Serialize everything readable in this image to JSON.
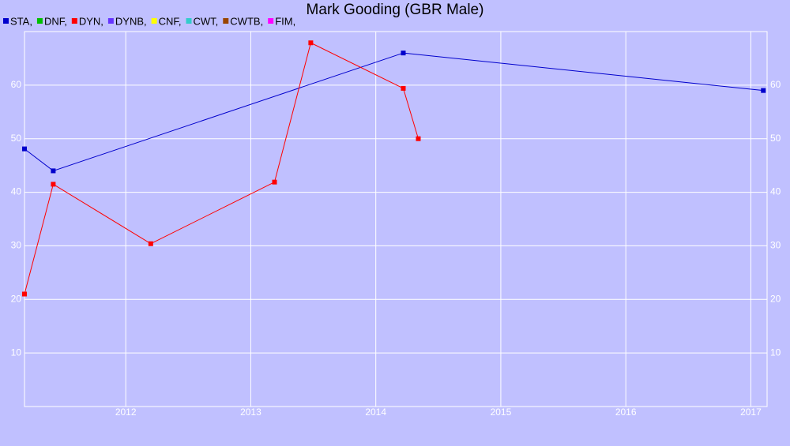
{
  "chart_data": {
    "type": "line",
    "title": "Mark Gooding (GBR Male)",
    "background": "#c0c0ff",
    "grid": true,
    "grid_color": "#ffffff",
    "xlim": [
      2011.19,
      2017.13
    ],
    "xticks": [
      2012,
      2013,
      2014,
      2015,
      2016,
      2017
    ],
    "ylim": [
      0,
      70
    ],
    "yticks": [
      10,
      20,
      30,
      40,
      50,
      60
    ],
    "series": [
      {
        "name": "STA,",
        "color": "#0000cc",
        "x": [
          2011.19,
          2011.42,
          2014.22,
          2017.1
        ],
        "values": [
          48.1,
          44,
          66,
          59
        ]
      },
      {
        "name": "DNF,",
        "color": "#00c000",
        "x": [],
        "values": []
      },
      {
        "name": "DYN,",
        "color": "#ff0000",
        "x": [
          2011.19,
          2011.42,
          2012.2,
          2013.19,
          2013.48,
          2014.22,
          2014.34
        ],
        "values": [
          21,
          41.5,
          30.4,
          41.9,
          67.9,
          59.4,
          50
        ]
      },
      {
        "name": "DYNB,",
        "color": "#6633ff",
        "x": [],
        "values": []
      },
      {
        "name": "CNF,",
        "color": "#ffff00",
        "x": [],
        "values": []
      },
      {
        "name": "CWT,",
        "color": "#33cccc",
        "x": [],
        "values": []
      },
      {
        "name": "CWTB,",
        "color": "#994400",
        "x": [],
        "values": []
      },
      {
        "name": "FIM,",
        "color": "#ff00ff",
        "x": [],
        "values": []
      }
    ]
  }
}
